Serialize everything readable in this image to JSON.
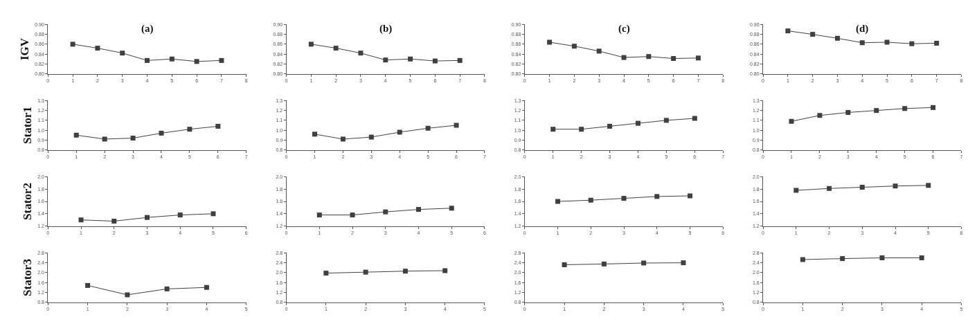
{
  "chart_data": [
    {
      "type": "line",
      "title": "(a)",
      "ylabel": "IGV",
      "x": [
        1,
        2,
        3,
        4,
        5,
        6,
        7
      ],
      "series": [
        {
          "color": "#404040",
          "values": [
            0.86,
            0.852,
            0.842,
            0.827,
            0.83,
            0.825,
            0.827
          ]
        }
      ],
      "xlim": [
        0,
        8
      ],
      "xticks": [
        0,
        1,
        2,
        3,
        4,
        5,
        6,
        7,
        8
      ],
      "ylim": [
        0.8,
        0.9
      ],
      "yticks": [
        {
          "value": 0.8,
          "label": "0.80"
        },
        {
          "value": 0.82,
          "label": "0.82"
        },
        {
          "value": 0.84,
          "label": "0.84"
        },
        {
          "value": 0.86,
          "label": "0.86"
        },
        {
          "value": 0.88,
          "label": "0.88"
        },
        {
          "value": 0.9,
          "label": "0.90"
        }
      ],
      "marker": "square",
      "grid": false
    },
    {
      "type": "line",
      "title": "(b)",
      "x": [
        1,
        2,
        3,
        4,
        5,
        6,
        7
      ],
      "series": [
        {
          "color": "#404040",
          "values": [
            0.86,
            0.852,
            0.842,
            0.828,
            0.83,
            0.826,
            0.827
          ]
        }
      ],
      "xlim": [
        0,
        8
      ],
      "xticks": [
        0,
        1,
        2,
        3,
        4,
        5,
        6,
        7,
        8
      ],
      "ylim": [
        0.8,
        0.9
      ],
      "yticks": [
        {
          "value": 0.8,
          "label": "0.80"
        },
        {
          "value": 0.82,
          "label": "0.82"
        },
        {
          "value": 0.84,
          "label": "0.84"
        },
        {
          "value": 0.86,
          "label": "0.86"
        },
        {
          "value": 0.88,
          "label": "0.88"
        },
        {
          "value": 0.9,
          "label": "0.90"
        }
      ],
      "marker": "square",
      "grid": false
    },
    {
      "type": "line",
      "title": "(c)",
      "x": [
        1,
        2,
        3,
        4,
        5,
        6,
        7
      ],
      "series": [
        {
          "color": "#404040",
          "values": [
            0.864,
            0.856,
            0.846,
            0.833,
            0.835,
            0.831,
            0.832
          ]
        }
      ],
      "xlim": [
        0,
        8
      ],
      "xticks": [
        0,
        1,
        2,
        3,
        4,
        5,
        6,
        7,
        8
      ],
      "ylim": [
        0.8,
        0.9
      ],
      "yticks": [
        {
          "value": 0.8,
          "label": "0.80"
        },
        {
          "value": 0.82,
          "label": "0.82"
        },
        {
          "value": 0.84,
          "label": "0.84"
        },
        {
          "value": 0.86,
          "label": "0.86"
        },
        {
          "value": 0.88,
          "label": "0.88"
        },
        {
          "value": 0.9,
          "label": "0.90"
        }
      ],
      "marker": "square",
      "grid": false
    },
    {
      "type": "line",
      "title": "(d)",
      "x": [
        1,
        2,
        3,
        4,
        5,
        6,
        7
      ],
      "series": [
        {
          "color": "#404040",
          "values": [
            0.887,
            0.88,
            0.872,
            0.863,
            0.864,
            0.861,
            0.862
          ]
        }
      ],
      "xlim": [
        0,
        8
      ],
      "xticks": [
        0,
        1,
        2,
        3,
        4,
        5,
        6,
        7,
        8
      ],
      "ylim": [
        0.8,
        0.9
      ],
      "yticks": [
        {
          "value": 0.8,
          "label": "0.80"
        },
        {
          "value": 0.82,
          "label": "0.82"
        },
        {
          "value": 0.84,
          "label": "0.84"
        },
        {
          "value": 0.86,
          "label": "0.86"
        },
        {
          "value": 0.88,
          "label": "0.88"
        },
        {
          "value": 0.9,
          "label": "0.90"
        }
      ],
      "marker": "square",
      "grid": false
    },
    {
      "type": "line",
      "ylabel": "Stator1",
      "x": [
        1,
        2,
        3,
        4,
        5,
        6
      ],
      "series": [
        {
          "color": "#404040",
          "values": [
            0.95,
            0.91,
            0.92,
            0.97,
            1.01,
            1.04
          ]
        }
      ],
      "xlim": [
        0,
        7
      ],
      "xticks": [
        0,
        1,
        2,
        3,
        4,
        5,
        6,
        7
      ],
      "ylim": [
        0.8,
        1.3
      ],
      "yticks": [
        {
          "value": 0.8,
          "label": "0.8"
        },
        {
          "value": 0.9,
          "label": "0.9"
        },
        {
          "value": 1.0,
          "label": "1.0"
        },
        {
          "value": 1.1,
          "label": "1.1"
        },
        {
          "value": 1.2,
          "label": "1.2"
        },
        {
          "value": 1.3,
          "label": "1.3"
        }
      ],
      "marker": "square",
      "grid": false
    },
    {
      "type": "line",
      "x": [
        1,
        2,
        3,
        4,
        5,
        6
      ],
      "series": [
        {
          "color": "#404040",
          "values": [
            0.96,
            0.91,
            0.93,
            0.98,
            1.02,
            1.05
          ]
        }
      ],
      "xlim": [
        0,
        7
      ],
      "xticks": [
        0,
        1,
        2,
        3,
        4,
        5,
        6,
        7
      ],
      "ylim": [
        0.8,
        1.3
      ],
      "yticks": [
        {
          "value": 0.8,
          "label": "0.8"
        },
        {
          "value": 0.9,
          "label": "0.9"
        },
        {
          "value": 1.0,
          "label": "1.0"
        },
        {
          "value": 1.1,
          "label": "1.1"
        },
        {
          "value": 1.2,
          "label": "1.2"
        },
        {
          "value": 1.3,
          "label": "1.3"
        }
      ],
      "marker": "square",
      "grid": false
    },
    {
      "type": "line",
      "x": [
        1,
        2,
        3,
        4,
        5,
        6
      ],
      "series": [
        {
          "color": "#404040",
          "values": [
            1.01,
            1.01,
            1.04,
            1.07,
            1.1,
            1.12
          ]
        }
      ],
      "xlim": [
        0,
        7
      ],
      "xticks": [
        0,
        1,
        2,
        3,
        4,
        5,
        6,
        7
      ],
      "ylim": [
        0.8,
        1.3
      ],
      "yticks": [
        {
          "value": 0.8,
          "label": "0.8"
        },
        {
          "value": 0.9,
          "label": "0.9"
        },
        {
          "value": 1.0,
          "label": "1.0"
        },
        {
          "value": 1.1,
          "label": "1.1"
        },
        {
          "value": 1.2,
          "label": "1.2"
        },
        {
          "value": 1.3,
          "label": "1.3"
        }
      ],
      "marker": "square",
      "grid": false
    },
    {
      "type": "line",
      "x": [
        1,
        2,
        3,
        4,
        5,
        6
      ],
      "series": [
        {
          "color": "#404040",
          "values": [
            1.09,
            1.15,
            1.18,
            1.2,
            1.22,
            1.23
          ]
        }
      ],
      "xlim": [
        0,
        7
      ],
      "xticks": [
        0,
        1,
        2,
        3,
        4,
        5,
        6,
        7
      ],
      "ylim": [
        0.8,
        1.3
      ],
      "yticks": [
        {
          "value": 0.8,
          "label": "0.8"
        },
        {
          "value": 0.9,
          "label": "0.9"
        },
        {
          "value": 1.0,
          "label": "1.0"
        },
        {
          "value": 1.1,
          "label": "1.1"
        },
        {
          "value": 1.2,
          "label": "1.2"
        },
        {
          "value": 1.3,
          "label": "1.3"
        }
      ],
      "marker": "square",
      "grid": false
    },
    {
      "type": "line",
      "ylabel": "Stator2",
      "x": [
        1,
        2,
        3,
        4,
        5
      ],
      "series": [
        {
          "color": "#404040",
          "values": [
            1.3,
            1.28,
            1.34,
            1.38,
            1.4
          ]
        }
      ],
      "xlim": [
        0,
        6
      ],
      "xticks": [
        0,
        1,
        2,
        3,
        4,
        5,
        6
      ],
      "ylim": [
        1.2,
        2.0
      ],
      "yticks": [
        {
          "value": 1.2,
          "label": "1.2"
        },
        {
          "value": 1.4,
          "label": "1.4"
        },
        {
          "value": 1.6,
          "label": "1.6"
        },
        {
          "value": 1.8,
          "label": "1.8"
        },
        {
          "value": 2.0,
          "label": "2.0"
        }
      ],
      "marker": "square",
      "grid": false
    },
    {
      "type": "line",
      "x": [
        1,
        2,
        3,
        4,
        5
      ],
      "series": [
        {
          "color": "#404040",
          "values": [
            1.38,
            1.38,
            1.43,
            1.47,
            1.49
          ]
        }
      ],
      "xlim": [
        0,
        6
      ],
      "xticks": [
        0,
        1,
        2,
        3,
        4,
        5,
        6
      ],
      "ylim": [
        1.2,
        2.0
      ],
      "yticks": [
        {
          "value": 1.2,
          "label": "1.2"
        },
        {
          "value": 1.4,
          "label": "1.4"
        },
        {
          "value": 1.6,
          "label": "1.6"
        },
        {
          "value": 1.8,
          "label": "1.8"
        },
        {
          "value": 2.0,
          "label": "2.0"
        }
      ],
      "marker": "square",
      "grid": false
    },
    {
      "type": "line",
      "x": [
        1,
        2,
        3,
        4,
        5
      ],
      "series": [
        {
          "color": "#404040",
          "values": [
            1.6,
            1.62,
            1.65,
            1.68,
            1.69
          ]
        }
      ],
      "xlim": [
        0,
        6
      ],
      "xticks": [
        0,
        1,
        2,
        3,
        4,
        5,
        6
      ],
      "ylim": [
        1.2,
        2.0
      ],
      "yticks": [
        {
          "value": 1.2,
          "label": "1.2"
        },
        {
          "value": 1.4,
          "label": "1.4"
        },
        {
          "value": 1.6,
          "label": "1.6"
        },
        {
          "value": 1.8,
          "label": "1.8"
        },
        {
          "value": 2.0,
          "label": "2.0"
        }
      ],
      "marker": "square",
      "grid": false
    },
    {
      "type": "line",
      "x": [
        1,
        2,
        3,
        4,
        5
      ],
      "series": [
        {
          "color": "#404040",
          "values": [
            1.78,
            1.81,
            1.83,
            1.85,
            1.86
          ]
        }
      ],
      "xlim": [
        0,
        6
      ],
      "xticks": [
        0,
        1,
        2,
        3,
        4,
        5,
        6
      ],
      "ylim": [
        1.2,
        2.0
      ],
      "yticks": [
        {
          "value": 1.2,
          "label": "1.2"
        },
        {
          "value": 1.4,
          "label": "1.4"
        },
        {
          "value": 1.6,
          "label": "1.6"
        },
        {
          "value": 1.8,
          "label": "1.8"
        },
        {
          "value": 2.0,
          "label": "2.0"
        }
      ],
      "marker": "square",
      "grid": false
    },
    {
      "type": "line",
      "ylabel": "Stator3",
      "x": [
        1,
        2,
        3,
        4
      ],
      "series": [
        {
          "color": "#404040",
          "values": [
            1.48,
            1.1,
            1.34,
            1.4
          ]
        }
      ],
      "xlim": [
        0,
        5
      ],
      "xticks": [
        0,
        1,
        2,
        3,
        4,
        5
      ],
      "ylim": [
        0.8,
        2.8
      ],
      "yticks": [
        {
          "value": 0.8,
          "label": "0.8"
        },
        {
          "value": 1.2,
          "label": "1.2"
        },
        {
          "value": 1.6,
          "label": "1.6"
        },
        {
          "value": 2.0,
          "label": "2.0"
        },
        {
          "value": 2.4,
          "label": "2.4"
        },
        {
          "value": 2.8,
          "label": "2.8"
        }
      ],
      "marker": "square",
      "grid": false
    },
    {
      "type": "line",
      "x": [
        1,
        2,
        3,
        4
      ],
      "series": [
        {
          "color": "#404040",
          "values": [
            1.98,
            2.02,
            2.06,
            2.08
          ]
        }
      ],
      "xlim": [
        0,
        5
      ],
      "xticks": [
        0,
        1,
        2,
        3,
        4,
        5
      ],
      "ylim": [
        0.8,
        2.8
      ],
      "yticks": [
        {
          "value": 0.8,
          "label": "0.8"
        },
        {
          "value": 1.2,
          "label": "1.2"
        },
        {
          "value": 1.6,
          "label": "1.6"
        },
        {
          "value": 2.0,
          "label": "2.0"
        },
        {
          "value": 2.4,
          "label": "2.4"
        },
        {
          "value": 2.8,
          "label": "2.8"
        }
      ],
      "marker": "square",
      "grid": false
    },
    {
      "type": "line",
      "x": [
        1,
        2,
        3,
        4
      ],
      "series": [
        {
          "color": "#404040",
          "values": [
            2.32,
            2.35,
            2.39,
            2.4
          ]
        }
      ],
      "xlim": [
        0,
        5
      ],
      "xticks": [
        0,
        1,
        2,
        3,
        4,
        5
      ],
      "ylim": [
        0.8,
        2.8
      ],
      "yticks": [
        {
          "value": 0.8,
          "label": "0.8"
        },
        {
          "value": 1.2,
          "label": "1.2"
        },
        {
          "value": 1.6,
          "label": "1.6"
        },
        {
          "value": 2.0,
          "label": "2.0"
        },
        {
          "value": 2.4,
          "label": "2.4"
        },
        {
          "value": 2.8,
          "label": "2.8"
        }
      ],
      "marker": "square",
      "grid": false
    },
    {
      "type": "line",
      "x": [
        1,
        2,
        3,
        4
      ],
      "series": [
        {
          "color": "#404040",
          "values": [
            2.53,
            2.57,
            2.6,
            2.6
          ]
        }
      ],
      "xlim": [
        0,
        5
      ],
      "xticks": [
        0,
        1,
        2,
        3,
        4,
        5
      ],
      "ylim": [
        0.8,
        2.8
      ],
      "yticks": [
        {
          "value": 0.8,
          "label": "0.8"
        },
        {
          "value": 1.2,
          "label": "1.2"
        },
        {
          "value": 1.6,
          "label": "1.6"
        },
        {
          "value": 2.0,
          "label": "2.0"
        },
        {
          "value": 2.4,
          "label": "2.4"
        },
        {
          "value": 2.8,
          "label": "2.8"
        }
      ],
      "marker": "square",
      "grid": false
    }
  ]
}
